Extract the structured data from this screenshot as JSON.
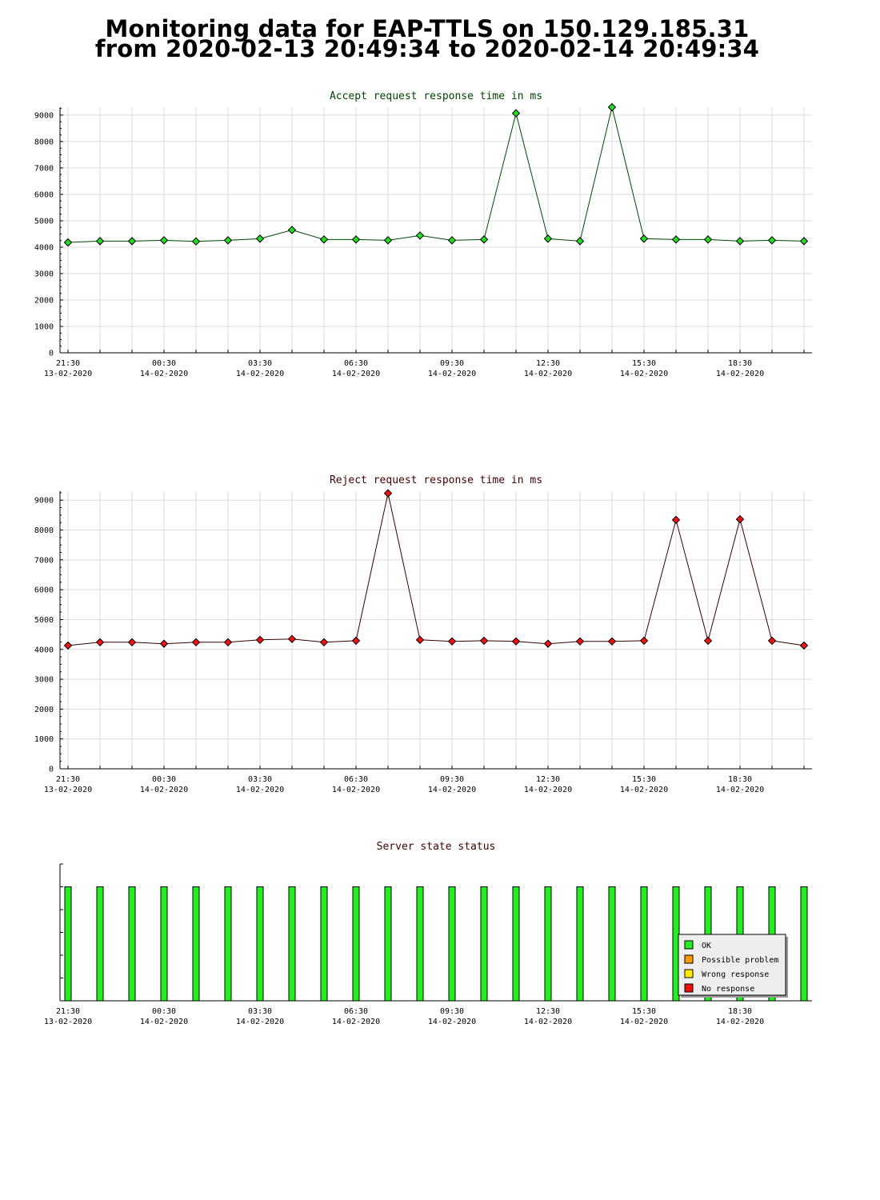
{
  "page": {
    "title_line1": "Monitoring data for EAP-TTLS on 150.129.185.31",
    "title_line2": "from 2020-02-13 20:49:34 to 2020-02-14 20:49:34"
  },
  "chart_data": [
    {
      "type": "line",
      "title": "Accept request response time in ms",
      "title_color": "#004400",
      "line_color": "#004400",
      "marker_color": "#22dd22",
      "ylim": [
        0,
        9300
      ],
      "yticks": [
        0,
        1000,
        2000,
        3000,
        4000,
        5000,
        6000,
        7000,
        8000,
        9000
      ],
      "grid": true,
      "x_range": [
        "2020-02-13 21:15",
        "2020-02-14 20:45"
      ],
      "xtick_labels": [
        {
          "time": "21:30",
          "date": "13-02-2020"
        },
        {
          "time": "00:30",
          "date": "14-02-2020"
        },
        {
          "time": "03:30",
          "date": "14-02-2020"
        },
        {
          "time": "06:30",
          "date": "14-02-2020"
        },
        {
          "time": "09:30",
          "date": "14-02-2020"
        },
        {
          "time": "12:30",
          "date": "14-02-2020"
        },
        {
          "time": "15:30",
          "date": "14-02-2020"
        },
        {
          "time": "18:30",
          "date": "14-02-2020"
        }
      ],
      "x": [
        "2020-02-13 21:30",
        "2020-02-13 22:30",
        "2020-02-13 23:30",
        "2020-02-14 00:30",
        "2020-02-14 01:30",
        "2020-02-14 02:30",
        "2020-02-14 03:30",
        "2020-02-14 04:30",
        "2020-02-14 05:30",
        "2020-02-14 06:30",
        "2020-02-14 07:30",
        "2020-02-14 08:30",
        "2020-02-14 09:30",
        "2020-02-14 10:30",
        "2020-02-14 11:30",
        "2020-02-14 12:30",
        "2020-02-14 13:30",
        "2020-02-14 14:30",
        "2020-02-14 15:30",
        "2020-02-14 16:30",
        "2020-02-14 17:30",
        "2020-02-14 18:30",
        "2020-02-14 19:30",
        "2020-02-14 20:30"
      ],
      "values": [
        4180,
        4230,
        4230,
        4260,
        4220,
        4260,
        4320,
        4650,
        4290,
        4290,
        4260,
        4440,
        4260,
        4290,
        9070,
        4320,
        4230,
        9300,
        4320,
        4290,
        4290,
        4230,
        4260,
        4230
      ]
    },
    {
      "type": "line",
      "title": "Reject request response time in ms",
      "title_color": "#440000",
      "line_color": "#330000",
      "marker_color": "#ee1111",
      "ylim": [
        0,
        9300
      ],
      "yticks": [
        0,
        1000,
        2000,
        3000,
        4000,
        5000,
        6000,
        7000,
        8000,
        9000
      ],
      "grid": true,
      "x_range": [
        "2020-02-13 21:15",
        "2020-02-14 20:45"
      ],
      "xtick_labels": [
        {
          "time": "21:30",
          "date": "13-02-2020"
        },
        {
          "time": "00:30",
          "date": "14-02-2020"
        },
        {
          "time": "03:30",
          "date": "14-02-2020"
        },
        {
          "time": "06:30",
          "date": "14-02-2020"
        },
        {
          "time": "09:30",
          "date": "14-02-2020"
        },
        {
          "time": "12:30",
          "date": "14-02-2020"
        },
        {
          "time": "15:30",
          "date": "14-02-2020"
        },
        {
          "time": "18:30",
          "date": "14-02-2020"
        }
      ],
      "x": [
        "2020-02-13 21:30",
        "2020-02-13 22:30",
        "2020-02-13 23:30",
        "2020-02-14 00:30",
        "2020-02-14 01:30",
        "2020-02-14 02:30",
        "2020-02-14 03:30",
        "2020-02-14 04:30",
        "2020-02-14 05:30",
        "2020-02-14 06:30",
        "2020-02-14 07:30",
        "2020-02-14 08:30",
        "2020-02-14 09:30",
        "2020-02-14 10:30",
        "2020-02-14 11:30",
        "2020-02-14 12:30",
        "2020-02-14 13:30",
        "2020-02-14 14:30",
        "2020-02-14 15:30",
        "2020-02-14 16:30",
        "2020-02-14 17:30",
        "2020-02-14 18:30",
        "2020-02-14 19:30",
        "2020-02-14 20:30"
      ],
      "values": [
        4130,
        4240,
        4240,
        4190,
        4240,
        4240,
        4320,
        4350,
        4240,
        4290,
        9230,
        4320,
        4270,
        4290,
        4270,
        4190,
        4270,
        4270,
        4290,
        8340,
        4290,
        8360,
        4290,
        4130
      ]
    },
    {
      "type": "bar",
      "title": "Server state status",
      "title_color": "#440000",
      "grid": false,
      "x_range": [
        "2020-02-13 21:15",
        "2020-02-14 20:45"
      ],
      "xtick_labels": [
        {
          "time": "21:30",
          "date": "13-02-2020"
        },
        {
          "time": "00:30",
          "date": "14-02-2020"
        },
        {
          "time": "03:30",
          "date": "14-02-2020"
        },
        {
          "time": "06:30",
          "date": "14-02-2020"
        },
        {
          "time": "09:30",
          "date": "14-02-2020"
        },
        {
          "time": "12:30",
          "date": "14-02-2020"
        },
        {
          "time": "15:30",
          "date": "14-02-2020"
        },
        {
          "time": "18:30",
          "date": "14-02-2020"
        }
      ],
      "x": [
        "2020-02-13 21:30",
        "2020-02-13 22:30",
        "2020-02-13 23:30",
        "2020-02-14 00:30",
        "2020-02-14 01:30",
        "2020-02-14 02:30",
        "2020-02-14 03:30",
        "2020-02-14 04:30",
        "2020-02-14 05:30",
        "2020-02-14 06:30",
        "2020-02-14 07:30",
        "2020-02-14 08:30",
        "2020-02-14 09:30",
        "2020-02-14 10:30",
        "2020-02-14 11:30",
        "2020-02-14 12:30",
        "2020-02-14 13:30",
        "2020-02-14 14:30",
        "2020-02-14 15:30",
        "2020-02-14 16:30",
        "2020-02-14 17:30",
        "2020-02-14 18:30",
        "2020-02-14 19:30",
        "2020-02-14 20:30"
      ],
      "states": [
        "OK",
        "OK",
        "OK",
        "OK",
        "OK",
        "OK",
        "OK",
        "OK",
        "OK",
        "OK",
        "OK",
        "OK",
        "OK",
        "OK",
        "OK",
        "OK",
        "OK",
        "OK",
        "OK",
        "OK",
        "OK",
        "OK",
        "OK",
        "OK"
      ],
      "legend_position": "bottom-right",
      "legend": [
        {
          "label": "OK",
          "color": "#22ee22"
        },
        {
          "label": "Possible problem",
          "color": "#ff9900"
        },
        {
          "label": "Wrong response",
          "color": "#ffee00"
        },
        {
          "label": "No response",
          "color": "#ee1111"
        }
      ]
    }
  ]
}
